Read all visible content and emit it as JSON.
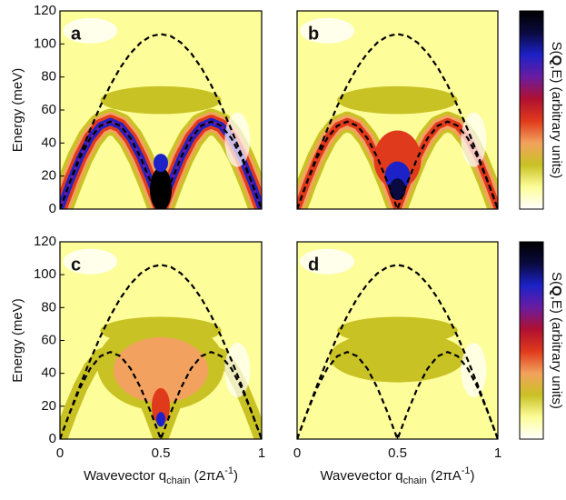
{
  "chart_data": [
    {
      "type": "contour",
      "label": "a",
      "xlim": [
        0,
        1
      ],
      "ylim": [
        0,
        120
      ],
      "yticks": [
        0,
        20,
        40,
        60,
        80,
        100,
        120
      ],
      "ylabel": "Energy (meV)",
      "x": [
        0,
        0.05,
        0.1,
        0.15,
        0.2,
        0.25,
        0.3,
        0.35,
        0.4,
        0.45,
        0.5,
        0.55,
        0.6,
        0.65,
        0.7,
        0.75,
        0.8,
        0.85,
        0.9,
        0.95,
        1
      ],
      "curves": [
        {
          "values": [
            0,
            16.6,
            32.8,
            48.1,
            62.3,
            75.0,
            85.8,
            94.4,
            100.8,
            104.7,
            106,
            104.7,
            100.8,
            94.4,
            85.8,
            75.0,
            62.3,
            48.1,
            32.8,
            16.6,
            0
          ]
        },
        {
          "values": [
            0,
            16.4,
            31.2,
            42.9,
            50.4,
            53,
            50.4,
            42.9,
            31.2,
            16.4,
            0,
            16.4,
            31.2,
            42.9,
            50.4,
            53,
            50.4,
            42.9,
            31.2,
            16.4,
            0
          ]
        }
      ]
    },
    {
      "type": "contour",
      "label": "b",
      "xlim": [
        0,
        1
      ],
      "ylim": [
        0,
        120
      ],
      "x": [
        0,
        0.05,
        0.1,
        0.15,
        0.2,
        0.25,
        0.3,
        0.35,
        0.4,
        0.45,
        0.5,
        0.55,
        0.6,
        0.65,
        0.7,
        0.75,
        0.8,
        0.85,
        0.9,
        0.95,
        1
      ],
      "curves": [
        {
          "values": [
            0,
            16.6,
            32.8,
            48.1,
            62.3,
            75.0,
            85.8,
            94.4,
            100.8,
            104.7,
            106,
            104.7,
            100.8,
            94.4,
            85.8,
            75.0,
            62.3,
            48.1,
            32.8,
            16.6,
            0
          ]
        },
        {
          "values": [
            0,
            16.4,
            31.2,
            42.9,
            50.4,
            53,
            50.4,
            42.9,
            31.2,
            16.4,
            0,
            16.4,
            31.2,
            42.9,
            50.4,
            53,
            50.4,
            42.9,
            31.2,
            16.4,
            0
          ]
        }
      ],
      "colorbar": {
        "label_pre": "S(",
        "label_bold": "Q",
        "label_post": ",E) (arbitrary units)",
        "colors": [
          "#ffffff",
          "#fdfd9a",
          "#c9c224",
          "#f2a25e",
          "#e03a1c",
          "#b01030",
          "#6a1ca0",
          "#1c22c8",
          "#0a0a40",
          "#000000"
        ]
      }
    },
    {
      "type": "contour",
      "label": "c",
      "xlim": [
        0,
        1
      ],
      "ylim": [
        0,
        120
      ],
      "xticks": [
        0,
        0.5,
        1
      ],
      "yticks": [
        0,
        20,
        40,
        60,
        80,
        100,
        120
      ],
      "ylabel": "Energy (meV)",
      "xlabel": "Wavevector q",
      "xlabel_sub": "chain",
      "xlabel_unit": " (2πA",
      "xlabel_sup": "-1",
      "xlabel_end": ")",
      "x": [
        0,
        0.05,
        0.1,
        0.15,
        0.2,
        0.25,
        0.3,
        0.35,
        0.4,
        0.45,
        0.5,
        0.55,
        0.6,
        0.65,
        0.7,
        0.75,
        0.8,
        0.85,
        0.9,
        0.95,
        1
      ],
      "curves": [
        {
          "values": [
            0,
            16.6,
            32.8,
            48.1,
            62.3,
            75.0,
            85.8,
            94.4,
            100.8,
            104.7,
            106,
            104.7,
            100.8,
            94.4,
            85.8,
            75.0,
            62.3,
            48.1,
            32.8,
            16.6,
            0
          ]
        },
        {
          "values": [
            0,
            16.4,
            31.2,
            42.9,
            50.4,
            53,
            50.4,
            42.9,
            31.2,
            16.4,
            0,
            16.4,
            31.2,
            42.9,
            50.4,
            53,
            50.4,
            42.9,
            31.2,
            16.4,
            0
          ]
        }
      ]
    },
    {
      "type": "contour",
      "label": "d",
      "xlim": [
        0,
        1
      ],
      "ylim": [
        0,
        120
      ],
      "xticks": [
        0,
        0.5,
        1
      ],
      "xlabel": "Wavevector q",
      "xlabel_sub": "chain",
      "xlabel_unit": " (2πA",
      "xlabel_sup": "-1",
      "xlabel_end": ")",
      "x": [
        0,
        0.05,
        0.1,
        0.15,
        0.2,
        0.25,
        0.3,
        0.35,
        0.4,
        0.45,
        0.5,
        0.55,
        0.6,
        0.65,
        0.7,
        0.75,
        0.8,
        0.85,
        0.9,
        0.95,
        1
      ],
      "curves": [
        {
          "values": [
            0,
            16.6,
            32.8,
            48.1,
            62.3,
            75.0,
            85.8,
            94.4,
            100.8,
            104.7,
            106,
            104.7,
            100.8,
            94.4,
            85.8,
            75.0,
            62.3,
            48.1,
            32.8,
            16.6,
            0
          ]
        },
        {
          "values": [
            0,
            16.4,
            31.2,
            42.9,
            50.4,
            53,
            50.4,
            42.9,
            31.2,
            16.4,
            0,
            16.4,
            31.2,
            42.9,
            50.4,
            53,
            50.4,
            42.9,
            31.2,
            16.4,
            0
          ]
        }
      ],
      "colorbar": {
        "label_pre": "S(",
        "label_bold": "Q",
        "label_post": ",E) (arbitrary units)",
        "colors": [
          "#ffffff",
          "#fdfd9a",
          "#c9c224",
          "#f2a25e",
          "#e03a1c",
          "#b01030",
          "#6a1ca0",
          "#1c22c8",
          "#0a0a40",
          "#000000"
        ]
      }
    }
  ]
}
